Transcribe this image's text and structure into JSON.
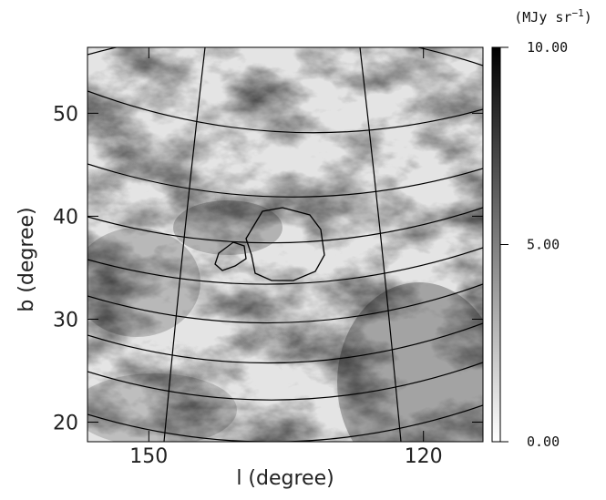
{
  "chart_data": {
    "type": "image",
    "xlabel": "l (degree)",
    "ylabel": "b (degree)",
    "xlim": [
      156.7,
      113.5
    ],
    "ylim": [
      18.1,
      56.4
    ],
    "xticks": [
      150,
      120
    ],
    "yticks": [
      20,
      30,
      40,
      50
    ],
    "colorbar": {
      "label": [
        "(MJy sr",
        "−1",
        ")"
      ],
      "lim": [
        0,
        10
      ],
      "ticks": [
        {
          "value": 0,
          "label": "0.00"
        },
        {
          "value": 5,
          "label": "5.00"
        },
        {
          "value": 10,
          "label": "10.00"
        }
      ],
      "colors": [
        "#ffffff",
        "#000000"
      ]
    }
  }
}
